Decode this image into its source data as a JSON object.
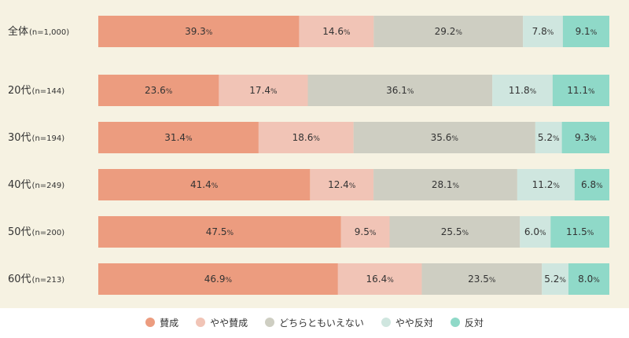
{
  "chart_data": {
    "type": "bar",
    "orientation": "horizontal",
    "stacked": true,
    "percent_suffix": "%",
    "categories": [
      {
        "label": "全体",
        "n": "(n=1,000)"
      },
      {
        "label": "20代",
        "n": "(n=144)"
      },
      {
        "label": "30代",
        "n": "(n=194)"
      },
      {
        "label": "40代",
        "n": "(n=249)"
      },
      {
        "label": "50代",
        "n": "(n=200)"
      },
      {
        "label": "60代",
        "n": "(n=213)"
      }
    ],
    "series": [
      {
        "name": "賛成",
        "color": "#ec9c7f",
        "values": [
          39.3,
          23.6,
          31.4,
          41.4,
          47.5,
          46.9
        ]
      },
      {
        "name": "やや賛成",
        "color": "#f1c4b6",
        "values": [
          14.6,
          17.4,
          18.6,
          12.4,
          9.5,
          16.4
        ]
      },
      {
        "name": "どちらともいえない",
        "color": "#cecec2",
        "values": [
          29.2,
          36.1,
          35.6,
          28.1,
          25.5,
          23.5
        ]
      },
      {
        "name": "やや反対",
        "color": "#cfe6df",
        "values": [
          7.8,
          11.8,
          5.2,
          11.2,
          6.0,
          5.2
        ]
      },
      {
        "name": "反対",
        "color": "#8fd9c8",
        "values": [
          9.1,
          11.1,
          9.3,
          6.8,
          11.5,
          8.0
        ]
      }
    ],
    "legend_position": "bottom",
    "grid": false
  }
}
